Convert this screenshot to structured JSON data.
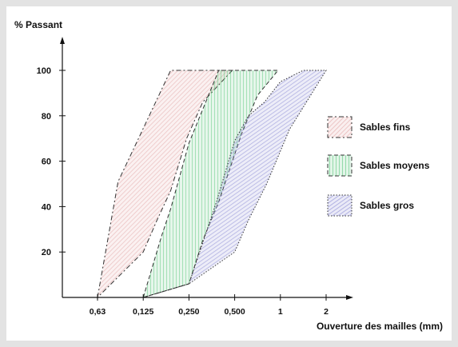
{
  "chart_data": {
    "type": "area",
    "title": "",
    "ylabel": "% Passant",
    "xlabel": "Ouverture des mailles (mm)",
    "x_categories": [
      "0,63",
      "0,125",
      "0,250",
      "0,500",
      "1",
      "2"
    ],
    "y_ticks": [
      20,
      40,
      60,
      80,
      100
    ],
    "ylim": [
      0,
      100
    ],
    "grid": false,
    "legend_position": "right",
    "series": [
      {
        "name": "Sables fins",
        "color": "#e2a8a8",
        "stroke_style": "dash-dot",
        "polygon": [
          {
            "x": 0.0,
            "y": 0
          },
          {
            "x": 0.45,
            "y": 51
          },
          {
            "x": 0.85,
            "y": 68
          },
          {
            "x": 1.6,
            "y": 100
          },
          {
            "x": 2.95,
            "y": 100
          },
          {
            "x": 2.3,
            "y": 86
          },
          {
            "x": 1.95,
            "y": 70
          },
          {
            "x": 1.6,
            "y": 47
          },
          {
            "x": 1.3,
            "y": 34
          },
          {
            "x": 1.0,
            "y": 20
          },
          {
            "x": 0.0,
            "y": 0
          }
        ]
      },
      {
        "name": "Sables moyens",
        "color": "#5ec880",
        "stroke_style": "dashed",
        "polygon": [
          {
            "x": 1.0,
            "y": 0
          },
          {
            "x": 1.4,
            "y": 27
          },
          {
            "x": 1.6,
            "y": 39
          },
          {
            "x": 2.0,
            "y": 68
          },
          {
            "x": 2.65,
            "y": 100
          },
          {
            "x": 3.95,
            "y": 100
          },
          {
            "x": 3.5,
            "y": 89
          },
          {
            "x": 3.15,
            "y": 72
          },
          {
            "x": 2.65,
            "y": 42
          },
          {
            "x": 2.3,
            "y": 25
          },
          {
            "x": 2.0,
            "y": 6
          },
          {
            "x": 1.0,
            "y": 0
          }
        ]
      },
      {
        "name": "Sables gros",
        "color": "#8c8cd4",
        "stroke_style": "dotted",
        "polygon": [
          {
            "x": 1.0,
            "y": 0
          },
          {
            "x": 2.0,
            "y": 6
          },
          {
            "x": 2.6,
            "y": 42
          },
          {
            "x": 3.0,
            "y": 69
          },
          {
            "x": 3.3,
            "y": 80
          },
          {
            "x": 3.65,
            "y": 86
          },
          {
            "x": 4.0,
            "y": 95
          },
          {
            "x": 4.5,
            "y": 100
          },
          {
            "x": 4.9,
            "y": 100
          },
          {
            "x": 5.0,
            "y": 100
          },
          {
            "x": 4.2,
            "y": 74
          },
          {
            "x": 3.7,
            "y": 50
          },
          {
            "x": 3.3,
            "y": 34
          },
          {
            "x": 3.0,
            "y": 20
          },
          {
            "x": 2.0,
            "y": 6
          }
        ]
      }
    ]
  }
}
